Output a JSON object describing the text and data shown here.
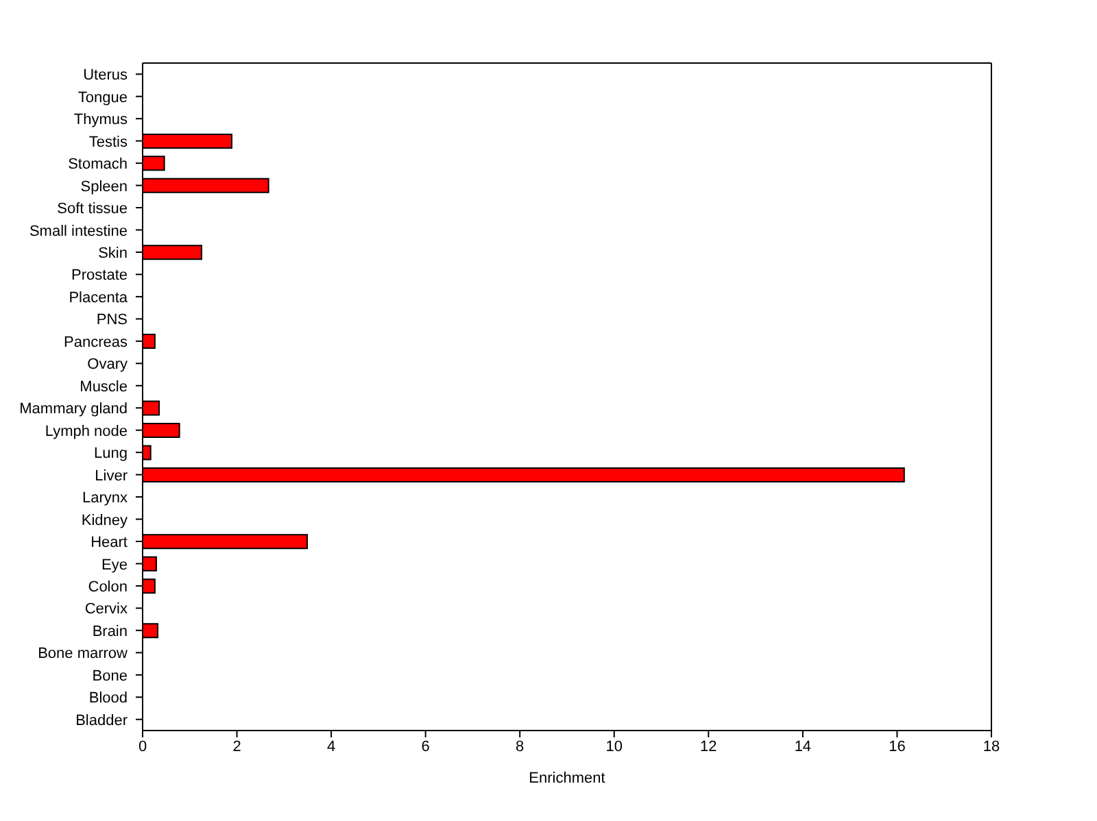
{
  "chart_data": {
    "type": "bar",
    "orientation": "horizontal",
    "xlabel": "Enrichment",
    "categories": [
      "Uterus",
      "Tongue",
      "Thymus",
      "Testis",
      "Stomach",
      "Spleen",
      "Soft tissue",
      "Small intestine",
      "Skin",
      "Prostate",
      "Placenta",
      "PNS",
      "Pancreas",
      "Ovary",
      "Muscle",
      "Mammary gland",
      "Lymph node",
      "Lung",
      "Liver",
      "Larynx",
      "Kidney",
      "Heart",
      "Eye",
      "Colon",
      "Cervix",
      "Brain",
      "Bone marrow",
      "Bone",
      "Blood",
      "Bladder"
    ],
    "values": [
      0,
      0,
      0,
      1.89,
      0.46,
      2.67,
      0,
      0,
      1.25,
      0,
      0,
      0,
      0.26,
      0,
      0,
      0.35,
      0.78,
      0.17,
      16.15,
      0,
      0,
      3.49,
      0.29,
      0.26,
      0,
      0.32,
      0,
      0,
      0,
      0
    ],
    "color": "#ff0000",
    "xlim": [
      0,
      18
    ],
    "xticks": [
      0,
      2,
      4,
      6,
      8,
      10,
      12,
      14,
      16,
      18
    ]
  }
}
